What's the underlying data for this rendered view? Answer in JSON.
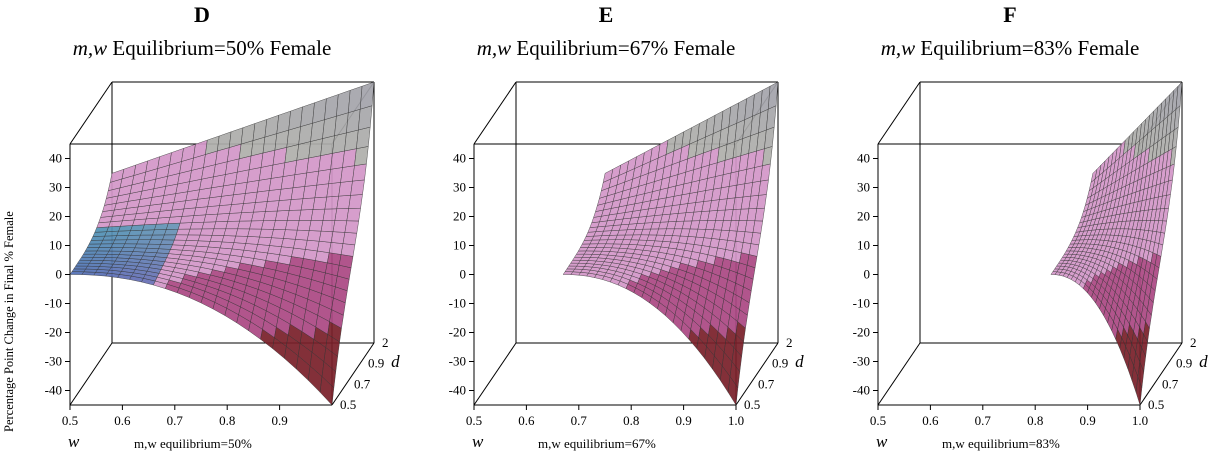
{
  "panels": [
    {
      "letter": "D",
      "title_prefix": "m,w",
      "title_rest": " Equilibrium=50% Female",
      "equilibrium": 0.5,
      "xaxis_title": "m,w equilibrium=50%",
      "x_var": "w",
      "y_var": "d",
      "zlabel": "Percentage Point Change in Final % Female"
    },
    {
      "letter": "E",
      "title_prefix": "m,w",
      "title_rest": " Equilibrium=67% Female",
      "equilibrium": 0.67,
      "xaxis_title": "m,w equilibrium=67%",
      "x_var": "w",
      "y_var": "d"
    },
    {
      "letter": "F",
      "title_prefix": "m,w",
      "title_rest": " Equilibrium=83% Female",
      "equilibrium": 0.83,
      "xaxis_title": "m,w equilibrium=83%",
      "x_var": "w",
      "y_var": "d"
    }
  ],
  "chart_data": [
    {
      "type": "surface",
      "panel": "D",
      "xlabel": "w",
      "ylabel": "d",
      "zlabel": "Percentage Point Change in Final % Female",
      "x_ticks": [
        "0.5",
        "0.6",
        "0.7",
        "0.8",
        "0.9"
      ],
      "y_ticks": [
        "0.5",
        "0.7",
        "0.9",
        "2"
      ],
      "z_ticks": [
        "-40",
        "-30",
        "-20",
        "-10",
        "0",
        "10",
        "20",
        "30",
        "40"
      ],
      "xlim": [
        0.5,
        1.0
      ],
      "ylim": [
        0.5,
        2.0
      ],
      "zlim": [
        -45,
        45
      ]
    },
    {
      "type": "surface",
      "panel": "E",
      "xlabel": "w",
      "ylabel": "d",
      "x_ticks": [
        "0.5",
        "0.6",
        "0.7",
        "0.8",
        "0.9",
        "1.0"
      ],
      "y_ticks": [
        "0.5",
        "0.7",
        "0.9",
        "2"
      ],
      "z_ticks": [
        "-40",
        "-30",
        "-20",
        "-10",
        "0",
        "10",
        "20",
        "30",
        "40"
      ],
      "xlim": [
        0.5,
        1.0
      ],
      "ylim": [
        0.5,
        2.0
      ],
      "zlim": [
        -45,
        45
      ]
    },
    {
      "type": "surface",
      "panel": "F",
      "xlabel": "w",
      "ylabel": "d",
      "x_ticks": [
        "0.5",
        "0.6",
        "0.7",
        "0.8",
        "0.9",
        "1.0"
      ],
      "y_ticks": [
        "0.5",
        "0.7",
        "0.9",
        "2"
      ],
      "z_ticks": [
        "-40",
        "-30",
        "-20",
        "-10",
        "0",
        "10",
        "20",
        "30",
        "40"
      ],
      "xlim": [
        0.5,
        1.0
      ],
      "ylim": [
        0.5,
        2.0
      ],
      "zlim": [
        -45,
        45
      ]
    }
  ]
}
